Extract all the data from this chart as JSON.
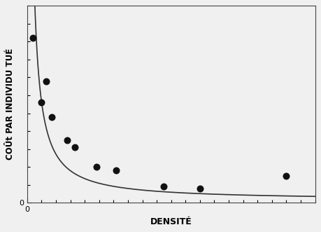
{
  "scatter_x": [
    0.4,
    1.3,
    1.0,
    1.7,
    2.8,
    3.3,
    4.8,
    6.2,
    9.5,
    12.0,
    18.0
  ],
  "scatter_y": [
    9.2,
    6.8,
    5.6,
    4.8,
    3.5,
    3.1,
    2.0,
    1.8,
    0.9,
    0.8,
    1.5
  ],
  "curve_a": 5.5,
  "curve_b": -1.1,
  "curve_c": 0.15,
  "xlim": [
    0,
    20
  ],
  "ylim": [
    0,
    11
  ],
  "xlabel": "DENSITÉ",
  "ylabel": "COÛt PAR INDIVIDU TUÉ",
  "xlabel_fontsize": 9,
  "ylabel_fontsize": 8.5,
  "tick_label_fontsize": 8,
  "marker_color": "#111111",
  "marker_size": 52,
  "line_color": "#333333",
  "line_width": 1.2,
  "background_color": "#f0f0f0",
  "xtick_major_positions": [
    0
  ],
  "ytick_major_positions": [
    0
  ],
  "x_minor_spacing": 1,
  "y_minor_spacing": 1
}
